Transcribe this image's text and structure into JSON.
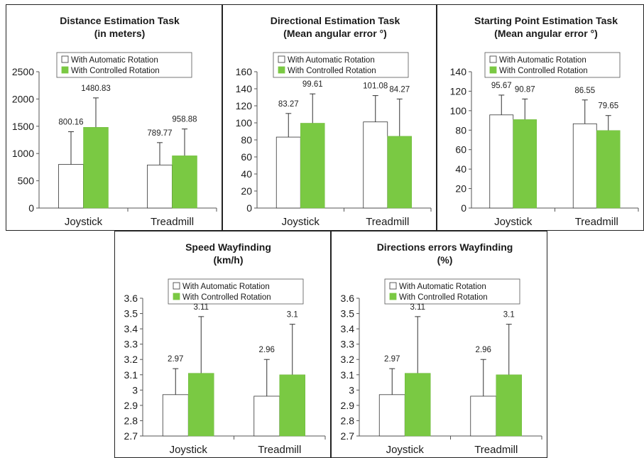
{
  "chart_data": [
    {
      "type": "bar",
      "title": "Distance Estimation Task",
      "subtitle": "(in meters)",
      "categories": [
        "Joystick",
        "Treadmill"
      ],
      "series": [
        {
          "name": "With Automatic Rotation",
          "color": "#ffffff",
          "values": [
            800.16,
            789.77
          ],
          "labels": [
            "800.16",
            "789.77"
          ],
          "error_upper": [
            1400,
            1200
          ]
        },
        {
          "name": "With Controlled Rotation",
          "color": "#7ac943",
          "values": [
            1480.83,
            958.88
          ],
          "labels": [
            "1480.83",
            "958.88"
          ],
          "error_upper": [
            2020,
            1450
          ]
        }
      ],
      "ylim": [
        0,
        2500
      ],
      "yticks": [
        "2500",
        "2000",
        "1500",
        "1000",
        "500",
        "0"
      ],
      "legend": "top"
    },
    {
      "type": "bar",
      "title": "Directional Estimation Task",
      "subtitle": "(Mean angular error °)",
      "categories": [
        "Joystick",
        "Treadmill"
      ],
      "series": [
        {
          "name": "With Automatic Rotation",
          "color": "#ffffff",
          "values": [
            83.27,
            101.08
          ],
          "labels": [
            "83.27",
            "101.08"
          ],
          "error_upper": [
            111,
            132
          ]
        },
        {
          "name": "With Controlled Rotation",
          "color": "#7ac943",
          "values": [
            99.61,
            84.27
          ],
          "labels": [
            "99.61",
            "84.27"
          ],
          "error_upper": [
            134,
            128
          ]
        }
      ],
      "ylim": [
        0,
        160
      ],
      "yticks": [
        "160",
        "140",
        "120",
        "100",
        "80",
        "60",
        "40",
        "20",
        "0"
      ],
      "legend": "top"
    },
    {
      "type": "bar",
      "title": "Starting Point Estimation Task",
      "subtitle": "(Mean angular error °)",
      "categories": [
        "Joystick",
        "Treadmill"
      ],
      "series": [
        {
          "name": "With Automatic Rotation",
          "color": "#ffffff",
          "values": [
            95.67,
            86.55
          ],
          "labels": [
            "95.67",
            "86.55"
          ],
          "error_upper": [
            116,
            111
          ]
        },
        {
          "name": "With Controlled Rotation",
          "color": "#7ac943",
          "values": [
            90.87,
            79.65
          ],
          "labels": [
            "90.87",
            "79.65"
          ],
          "error_upper": [
            112,
            95
          ]
        }
      ],
      "ylim": [
        0,
        140
      ],
      "yticks": [
        "140",
        "120",
        "100",
        "80",
        "60",
        "40",
        "20",
        "0"
      ],
      "legend": "top"
    },
    {
      "type": "bar",
      "title": "Speed Wayfinding",
      "subtitle": "(km/h)",
      "categories": [
        "Joystick",
        "Treadmill"
      ],
      "series": [
        {
          "name": "With Automatic Rotation",
          "color": "#ffffff",
          "values": [
            2.97,
            2.96
          ],
          "labels": [
            "2.97",
            "2.96"
          ],
          "error_upper": [
            3.14,
            3.2
          ]
        },
        {
          "name": "With Controlled Rotation",
          "color": "#7ac943",
          "values": [
            3.11,
            3.1
          ],
          "labels": [
            "3.11",
            "3.1"
          ],
          "error_upper": [
            3.48,
            3.43
          ]
        }
      ],
      "ylim": [
        2.7,
        3.6
      ],
      "yticks": [
        "3.6",
        "3.5",
        "3.4",
        "3.3",
        "3.2",
        "3.1",
        "3",
        "2.9",
        "2.8",
        "2.7"
      ],
      "legend": "top"
    },
    {
      "type": "bar",
      "title": "Directions errors Wayfinding",
      "subtitle": "(%)",
      "categories": [
        "Joystick",
        "Treadmill"
      ],
      "series": [
        {
          "name": "With Automatic Rotation",
          "color": "#ffffff",
          "values": [
            2.97,
            2.96
          ],
          "labels": [
            "2.97",
            "2.96"
          ],
          "error_upper": [
            3.14,
            3.2
          ]
        },
        {
          "name": "With Controlled Rotation",
          "color": "#7ac943",
          "values": [
            3.11,
            3.1
          ],
          "labels": [
            "3.11",
            "3.1"
          ],
          "error_upper": [
            3.48,
            3.43
          ]
        }
      ],
      "ylim": [
        2.7,
        3.6
      ],
      "yticks": [
        "3.6",
        "3.5",
        "3.4",
        "3.3",
        "3.2",
        "3.1",
        "3",
        "2.9",
        "2.8",
        "2.7"
      ],
      "legend": "top"
    }
  ]
}
